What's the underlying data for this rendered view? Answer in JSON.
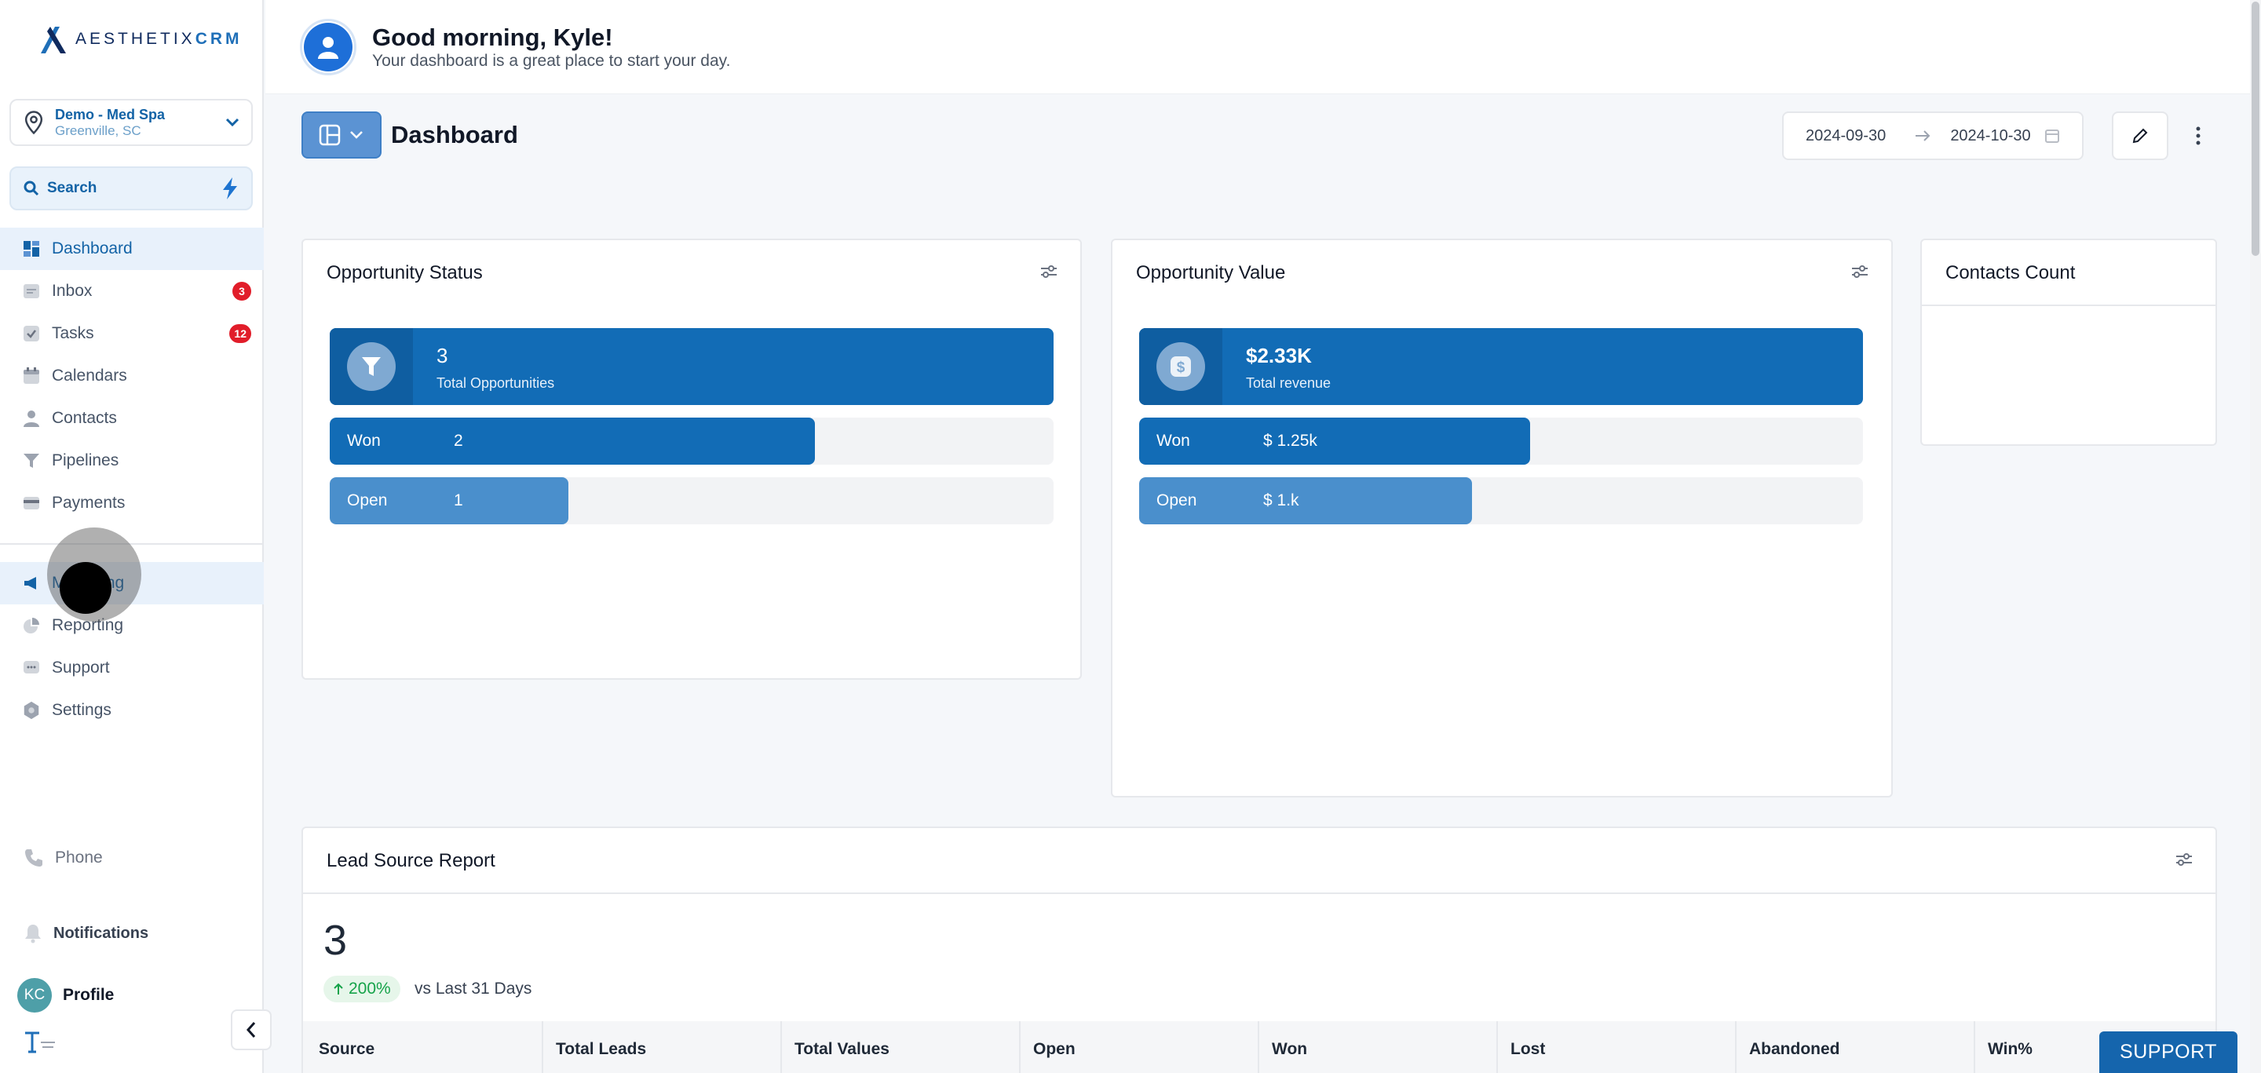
{
  "app": {
    "logo_text_1": "AESTHETIX",
    "logo_text_2": "CRM"
  },
  "location": {
    "name": "Demo - Med Spa",
    "city": "Greenville, SC"
  },
  "search": {
    "label": "Search"
  },
  "nav": {
    "items": [
      {
        "label": "Dashboard",
        "icon": "dashboard-icon",
        "active": true
      },
      {
        "label": "Inbox",
        "icon": "inbox-icon",
        "badge": "3"
      },
      {
        "label": "Tasks",
        "icon": "tasks-icon",
        "badge": "12"
      },
      {
        "label": "Calendars",
        "icon": "calendar-icon"
      },
      {
        "label": "Contacts",
        "icon": "person-icon"
      },
      {
        "label": "Pipelines",
        "icon": "filter-icon"
      },
      {
        "label": "Payments",
        "icon": "card-icon"
      }
    ],
    "secondary": [
      {
        "label": "Marketing",
        "icon": "megaphone-icon"
      },
      {
        "label": "Reporting",
        "icon": "chart-pie-icon"
      },
      {
        "label": "Support",
        "icon": "chat-icon"
      },
      {
        "label": "Settings",
        "icon": "gear-icon"
      }
    ],
    "phone": "Phone",
    "notifications": "Notifications",
    "profile": "Profile",
    "profile_initials": "KC"
  },
  "greeting": {
    "title": "Good morning, Kyle!",
    "subtitle": "Your dashboard is a great place to start your day."
  },
  "toolbar": {
    "title": "Dashboard",
    "date_start": "2024-09-30",
    "date_end": "2024-10-30"
  },
  "opportunity_status": {
    "title": "Opportunity Status",
    "total_value": "3",
    "total_label": "Total Opportunities",
    "rows": [
      {
        "label": "Won",
        "value": "2",
        "fraction": 0.67
      },
      {
        "label": "Open",
        "value": "1",
        "fraction": 0.33
      }
    ]
  },
  "opportunity_value": {
    "title": "Opportunity Value",
    "total_value": "$2.33K",
    "total_label": "Total revenue",
    "rows": [
      {
        "label": "Won",
        "value": "$ 1.25k",
        "fraction": 0.54
      },
      {
        "label": "Open",
        "value": "$ 1.k",
        "fraction": 0.46
      }
    ]
  },
  "contacts_count": {
    "title": "Contacts Count"
  },
  "lead_source": {
    "title": "Lead Source Report",
    "total": "3",
    "trend": "200%",
    "comparison": "vs Last 31 Days",
    "columns": [
      "Source",
      "Total Leads",
      "Total Values",
      "Open",
      "Won",
      "Lost",
      "Abandoned",
      "Win%"
    ]
  },
  "support_button": "SUPPORT",
  "colors": {
    "primary": "#126cb6",
    "open": "#4a8fcc",
    "badge": "#e11d2a"
  }
}
